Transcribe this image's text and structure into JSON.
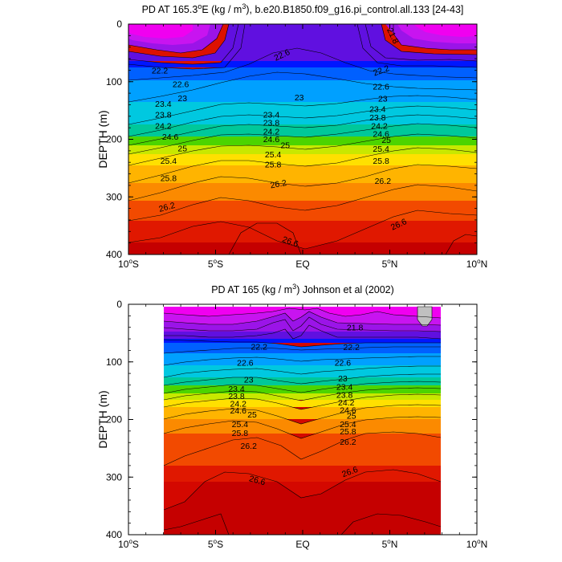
{
  "chart_data": [
    {
      "type": "contour",
      "id": "model",
      "title_parts": [
        "PD AT 165.3",
        "o",
        "E (kg / m",
        "3",
        "), b.e20.B1850.f09_g16.pi_control.all.133 [24-43]"
      ],
      "ylabel": "DEPTH (m)",
      "xlabel": "",
      "xlim": [
        -10,
        10
      ],
      "ylim": [
        0,
        400
      ],
      "x_ticks": [
        {
          "value": -10,
          "label": "10",
          "sup": "o",
          "suffix": "S"
        },
        {
          "value": -5,
          "label": "5",
          "sup": "o",
          "suffix": "S"
        },
        {
          "value": 0,
          "label": "EQ",
          "sup": "",
          "suffix": ""
        },
        {
          "value": 5,
          "label": "5",
          "sup": "o",
          "suffix": "N"
        },
        {
          "value": 10,
          "label": "10",
          "sup": "o",
          "suffix": "N"
        }
      ],
      "y_ticks": [
        0,
        100,
        200,
        300,
        400
      ],
      "data_extent": [
        -10,
        10
      ],
      "contour_labels": [
        {
          "x": 5.2,
          "y": 20,
          "text": "21.8",
          "angle": 65
        },
        {
          "x": -8.2,
          "y": 80,
          "text": "22.2",
          "angle": 0
        },
        {
          "x": 4.5,
          "y": 80,
          "text": "22.2",
          "angle": -20
        },
        {
          "x": -1.2,
          "y": 53,
          "text": "22.6",
          "angle": -25
        },
        {
          "x": -7.0,
          "y": 104,
          "text": "22.6",
          "angle": 0
        },
        {
          "x": 4.5,
          "y": 108,
          "text": "22.6",
          "angle": 0
        },
        {
          "x": -6.9,
          "y": 128,
          "text": "23",
          "angle": 0
        },
        {
          "x": -0.2,
          "y": 127,
          "text": "23",
          "angle": 0
        },
        {
          "x": 4.6,
          "y": 129,
          "text": "23",
          "angle": 0
        },
        {
          "x": -8.0,
          "y": 138,
          "text": "23.4",
          "angle": 0
        },
        {
          "x": -1.8,
          "y": 157,
          "text": "23.4",
          "angle": 0
        },
        {
          "x": 4.3,
          "y": 147,
          "text": "23.4",
          "angle": 0
        },
        {
          "x": -8.0,
          "y": 157,
          "text": "23.8",
          "angle": 0
        },
        {
          "x": -1.8,
          "y": 171,
          "text": "23.8",
          "angle": 0
        },
        {
          "x": 4.3,
          "y": 162,
          "text": "23.8",
          "angle": 0
        },
        {
          "x": -8.0,
          "y": 176,
          "text": "24.2",
          "angle": 0
        },
        {
          "x": -1.8,
          "y": 186,
          "text": "24.2",
          "angle": 0
        },
        {
          "x": 4.4,
          "y": 176,
          "text": "24.2",
          "angle": 0
        },
        {
          "x": -7.6,
          "y": 195,
          "text": "24.6",
          "angle": 0
        },
        {
          "x": -1.8,
          "y": 199,
          "text": "24.6",
          "angle": 0
        },
        {
          "x": 4.5,
          "y": 190,
          "text": "24.6",
          "angle": 0
        },
        {
          "x": -6.9,
          "y": 215,
          "text": "25",
          "angle": 0
        },
        {
          "x": -1.0,
          "y": 210,
          "text": "25",
          "angle": 0
        },
        {
          "x": 4.8,
          "y": 201,
          "text": "25",
          "angle": 0
        },
        {
          "x": -7.7,
          "y": 237,
          "text": "25.4",
          "angle": 0
        },
        {
          "x": -1.7,
          "y": 226,
          "text": "25.4",
          "angle": 0
        },
        {
          "x": 4.5,
          "y": 216,
          "text": "25.4",
          "angle": 0
        },
        {
          "x": -7.7,
          "y": 267,
          "text": "25.8",
          "angle": 0
        },
        {
          "x": -1.7,
          "y": 243,
          "text": "25.8",
          "angle": 0
        },
        {
          "x": 4.5,
          "y": 237,
          "text": "25.8",
          "angle": 0
        },
        {
          "x": -1.4,
          "y": 277,
          "text": "26.2",
          "angle": -10
        },
        {
          "x": 4.6,
          "y": 272,
          "text": "26.2",
          "angle": 0
        },
        {
          "x": -7.8,
          "y": 317,
          "text": "26.2",
          "angle": -15
        },
        {
          "x": -0.7,
          "y": 377,
          "text": "26.6",
          "angle": 20
        },
        {
          "x": 5.5,
          "y": 347,
          "text": "26.6",
          "angle": -25
        }
      ]
    },
    {
      "type": "contour",
      "id": "observations",
      "title_parts": [
        "PD AT 165 (kg / m",
        "3",
        ") Johnson et al (2002)"
      ],
      "ylabel": "DEPTH (m)",
      "xlabel": "",
      "xlim": [
        -10,
        10
      ],
      "ylim": [
        0,
        400
      ],
      "x_ticks": [
        {
          "value": -10,
          "label": "10",
          "sup": "o",
          "suffix": "S"
        },
        {
          "value": -5,
          "label": "5",
          "sup": "o",
          "suffix": "S"
        },
        {
          "value": 0,
          "label": "EQ",
          "sup": "",
          "suffix": ""
        },
        {
          "value": 5,
          "label": "5",
          "sup": "o",
          "suffix": "N"
        },
        {
          "value": 10,
          "label": "10",
          "sup": "o",
          "suffix": "N"
        }
      ],
      "y_ticks": [
        0,
        100,
        200,
        300,
        400
      ],
      "data_extent": [
        -8,
        8
      ],
      "contour_labels": [
        {
          "x": 3.0,
          "y": 40,
          "text": "21.8",
          "angle": 0
        },
        {
          "x": -2.5,
          "y": 73,
          "text": "22.2",
          "angle": 0
        },
        {
          "x": 2.8,
          "y": 74,
          "text": "22.2",
          "angle": 0
        },
        {
          "x": -3.3,
          "y": 101,
          "text": "22.6",
          "angle": 0
        },
        {
          "x": 2.3,
          "y": 101,
          "text": "22.6",
          "angle": 0
        },
        {
          "x": -3.1,
          "y": 130,
          "text": "23",
          "angle": 0
        },
        {
          "x": 2.3,
          "y": 128,
          "text": "23",
          "angle": 0
        },
        {
          "x": -3.8,
          "y": 146,
          "text": "23.4",
          "angle": 0
        },
        {
          "x": 2.4,
          "y": 143,
          "text": "23.4",
          "angle": 0
        },
        {
          "x": -3.8,
          "y": 159,
          "text": "23.8",
          "angle": 0
        },
        {
          "x": 2.4,
          "y": 157,
          "text": "23.8",
          "angle": 0
        },
        {
          "x": -3.7,
          "y": 172,
          "text": "24.2",
          "angle": 0
        },
        {
          "x": 2.5,
          "y": 170,
          "text": "24.2",
          "angle": 0
        },
        {
          "x": -3.7,
          "y": 184,
          "text": "24.6",
          "angle": 0
        },
        {
          "x": 2.6,
          "y": 183,
          "text": "24.6",
          "angle": 0
        },
        {
          "x": -2.9,
          "y": 191,
          "text": "25",
          "angle": 0
        },
        {
          "x": 2.8,
          "y": 193,
          "text": "25",
          "angle": 0
        },
        {
          "x": -3.6,
          "y": 208,
          "text": "25.4",
          "angle": 0
        },
        {
          "x": 2.6,
          "y": 208,
          "text": "25.4",
          "angle": 0
        },
        {
          "x": -3.6,
          "y": 223,
          "text": "25.8",
          "angle": 0
        },
        {
          "x": 2.6,
          "y": 220,
          "text": "25.8",
          "angle": 0
        },
        {
          "x": -3.1,
          "y": 245,
          "text": "26.2",
          "angle": 0
        },
        {
          "x": 2.6,
          "y": 238,
          "text": "26.2",
          "angle": 0
        },
        {
          "x": -2.6,
          "y": 305,
          "text": "26.6",
          "angle": 15
        },
        {
          "x": 2.7,
          "y": 290,
          "text": "26.6",
          "angle": -20
        }
      ]
    }
  ]
}
